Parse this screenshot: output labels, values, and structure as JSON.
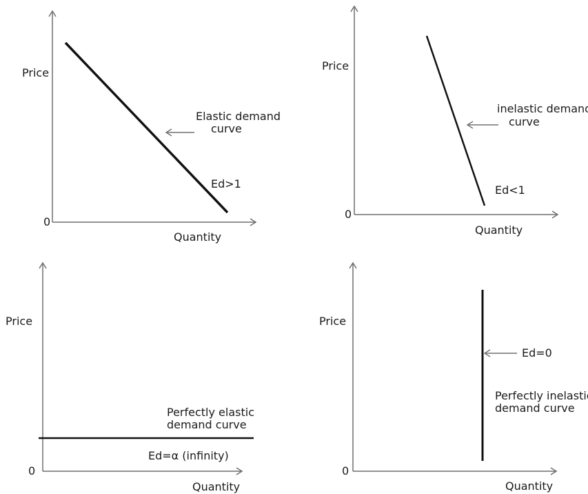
{
  "panels": [
    {
      "id": "elastic",
      "ylabel": "Price",
      "xlabel": "Quantity",
      "origin": "0",
      "curve_label_lines": [
        "Elastic demand",
        "curve"
      ],
      "elasticity_label": "Ed>1"
    },
    {
      "id": "inelastic",
      "ylabel": "Price",
      "xlabel": "Quantity",
      "origin": "0",
      "curve_label_lines": [
        "inelastic demand",
        "curve"
      ],
      "elasticity_label": "Ed<1"
    },
    {
      "id": "perfectly-elastic",
      "ylabel": "Price",
      "xlabel": "Quantity",
      "origin": "0",
      "curve_label_lines": [
        "Perfectly elastic",
        "demand curve"
      ],
      "elasticity_label": "Ed=α (infinity)"
    },
    {
      "id": "perfectly-inelastic",
      "ylabel": "Price",
      "xlabel": "Quantity",
      "origin": "0",
      "curve_label_lines": [
        "Perfectly inelastic",
        "demand curve"
      ],
      "elasticity_label": "Ed=0"
    }
  ]
}
